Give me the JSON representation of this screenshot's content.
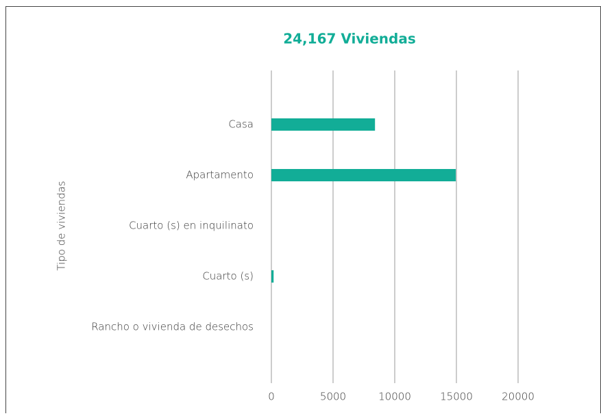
{
  "chart_data": {
    "type": "bar",
    "orientation": "horizontal",
    "title": "24,167 Viviendas",
    "ylabel": "Tipo de viviendas",
    "categories": [
      "Casa",
      "Apartamento",
      "Cuarto (s) en inquilinato",
      "Cuarto (s)",
      "Rancho o vivienda de desechos"
    ],
    "values": [
      8400,
      14950,
      0,
      180,
      0
    ],
    "color": "#12ad97",
    "xlim": [
      0,
      20000
    ],
    "xticks": [
      0,
      5000,
      10000,
      15000,
      20000
    ],
    "grid": true
  }
}
